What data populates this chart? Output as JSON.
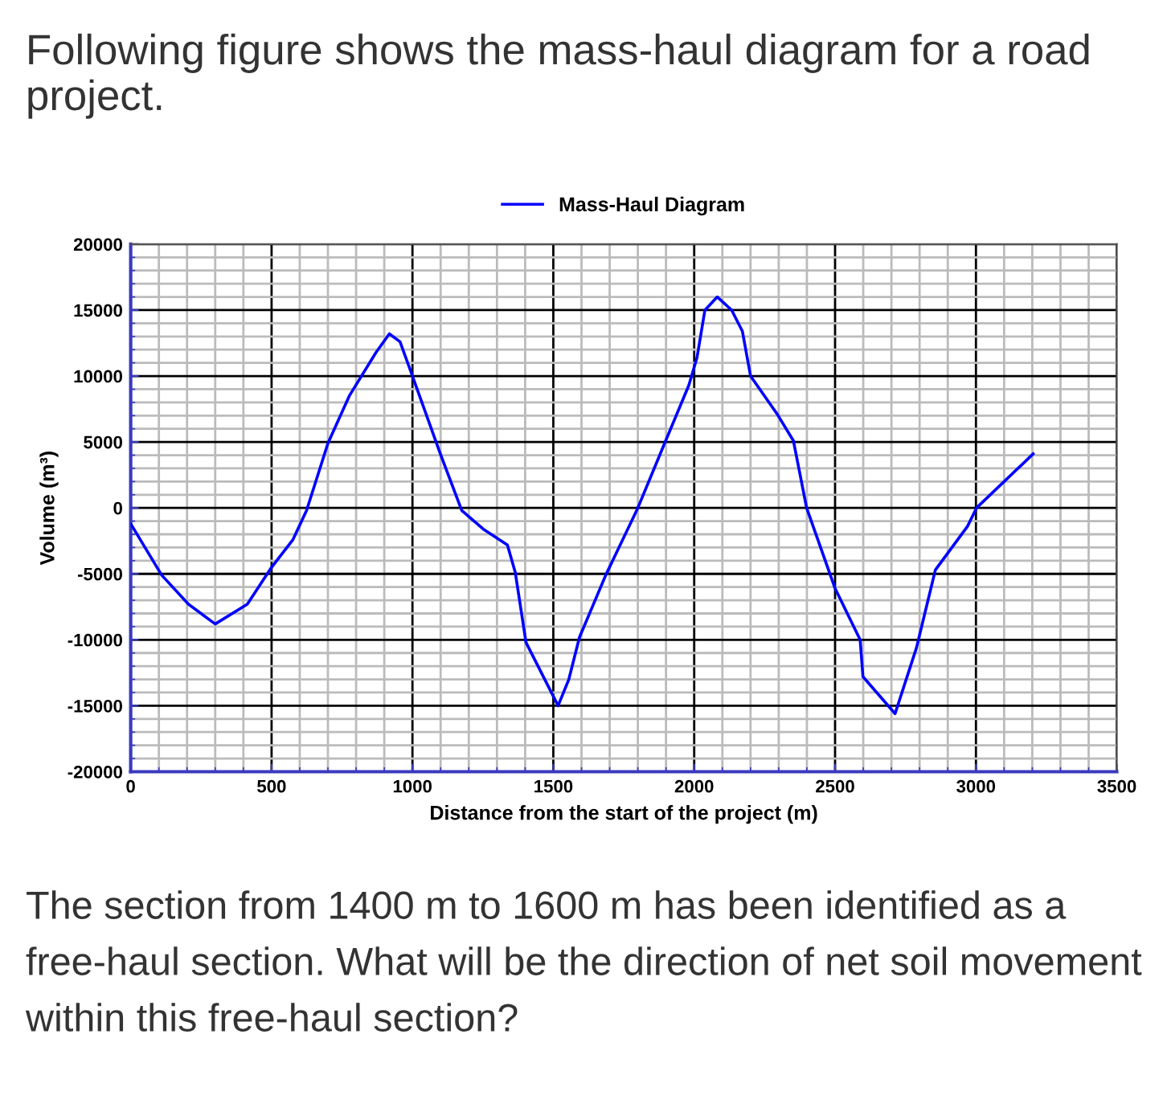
{
  "chart_data": {
    "type": "line",
    "title": "Following figure shows the mass-haul diagram for a road project.",
    "xlabel": "Distance from the start of the project (m)",
    "ylabel": "Volume (m³)",
    "series": [
      {
        "name": "Mass-Haul Diagram",
        "color": "#0000ff",
        "x": [
          0,
          110,
          205,
          300,
          414,
          500,
          576,
          624,
          700,
          776,
          871,
          918,
          956,
          1000,
          1099,
          1175,
          1251,
          1337,
          1365,
          1403,
          1517,
          1555,
          1593,
          1686,
          1800,
          1895,
          1981,
          2010,
          2038,
          2082,
          2133,
          2171,
          2200,
          2295,
          2352,
          2399,
          2500,
          2589,
          2599,
          2713,
          2789,
          2856,
          2970,
          3002,
          3203
        ],
        "values": [
          -1200,
          -5100,
          -7300,
          -8800,
          -7300,
          -4500,
          -2400,
          -200,
          4900,
          8500,
          11800,
          13200,
          12600,
          10000,
          4100,
          -200,
          -1600,
          -2800,
          -4900,
          -10200,
          -15000,
          -13000,
          -9800,
          -5100,
          0,
          4900,
          9300,
          11400,
          15000,
          16000,
          15000,
          13400,
          10000,
          7100,
          5100,
          0,
          -6100,
          -10000,
          -12800,
          -15600,
          -10600,
          -4700,
          -1400,
          0,
          4100
        ]
      }
    ],
    "xlim": [
      0,
      3500
    ],
    "xticks": [
      0,
      500,
      1000,
      1500,
      2000,
      2500,
      3000,
      3500
    ],
    "ylim": [
      -20000,
      20000
    ],
    "yticks": [
      -20000,
      -15000,
      -10000,
      -5000,
      0,
      5000,
      10000,
      15000,
      20000
    ],
    "grid": true,
    "legend": "top",
    "marker": "none",
    "line_style": "solid",
    "annotations": [
      "The section from 1400 m to 1600 m has been identified as a free-haul section. What will be the direction of net soil movement within this free-haul section?"
    ]
  }
}
